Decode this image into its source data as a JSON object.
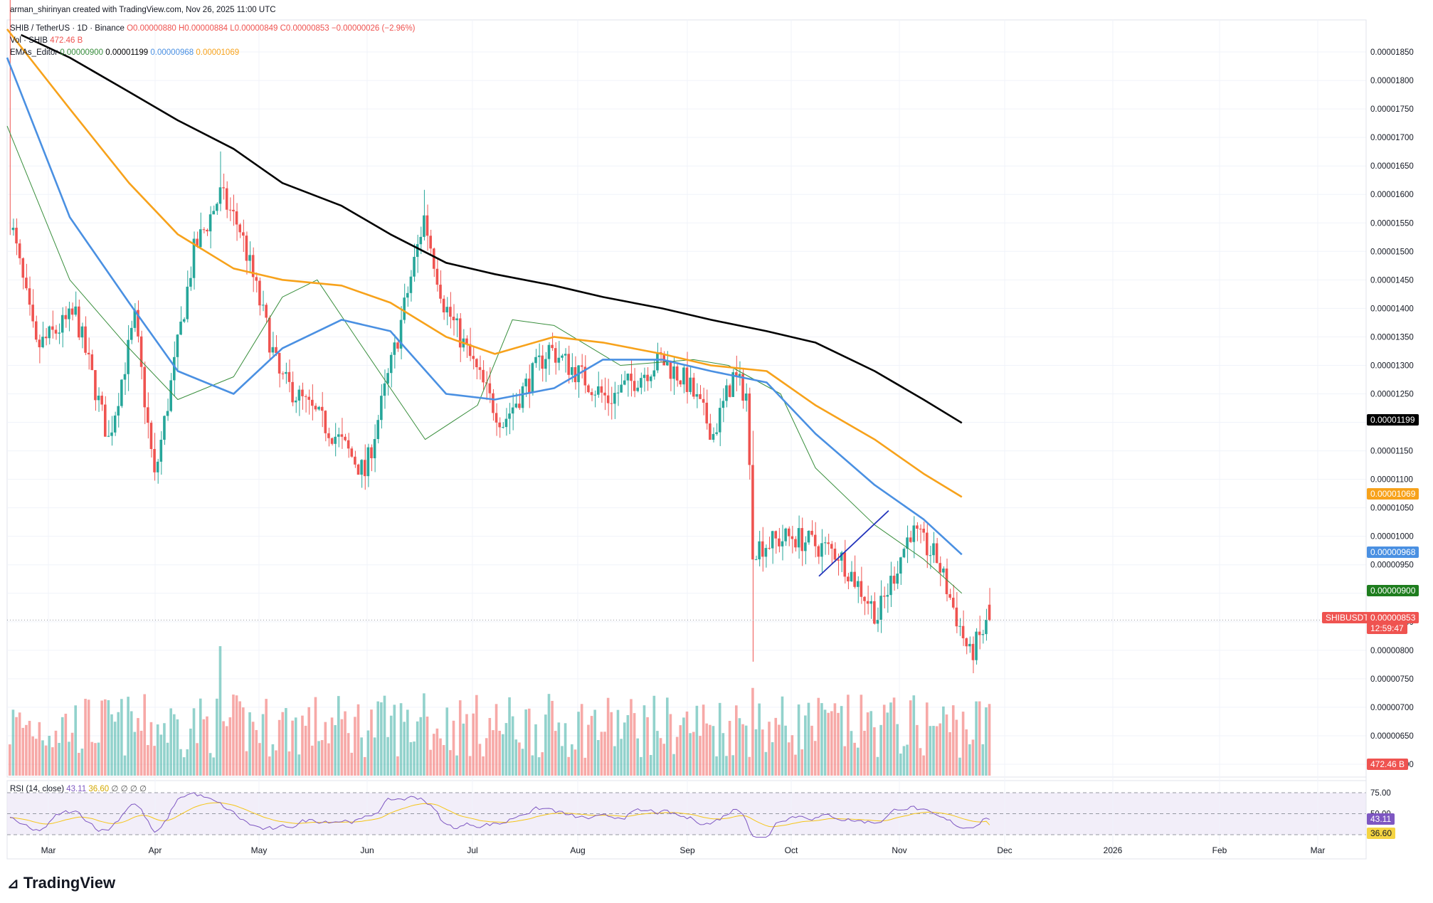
{
  "header": {
    "credit": "arman_shirinyan created with TradingView.com, Nov 26, 2025 11:00 UTC",
    "symbol": "SHIB / TetherUS · 1D · Binance",
    "open": "O0.00000880",
    "high": "H0.00000884",
    "low": "L0.00000849",
    "close": "C0.00000853",
    "change": "−0.00000026 (−2.96%)",
    "vol_label": "Vol · SHIB",
    "vol_value": "472.46 B",
    "ema_label": "EMAs_Editor",
    "ema_values": [
      "0.00000900",
      "0.00001199",
      "0.00000968",
      "0.00001069"
    ],
    "rsi_label": "RSI (14, close)",
    "rsi_value": "43.11",
    "rsi_ma": "36.60",
    "rsi_extra": "∅ ∅ ∅ ∅"
  },
  "brand": "TradingView",
  "colors": {
    "up": "#26a69a",
    "down": "#ef5350",
    "ema20": "#388e3c",
    "ema50": "#4a90e2",
    "ema100": "#f7a21b",
    "ema200": "#000000",
    "rsi": "#7e57c2",
    "rsi_ma": "#f5c518",
    "trendline": "#2233bb"
  },
  "price_axis": [
    "0.00001850",
    "0.00001800",
    "0.00001750",
    "0.00001700",
    "0.00001650",
    "0.00001600",
    "0.00001550",
    "0.00001500",
    "0.00001450",
    "0.00001400",
    "0.00001350",
    "0.00001300",
    "0.00001250",
    "0.00001200",
    "0.00001150",
    "0.00001100",
    "0.00001050",
    "0.00001000",
    "0.00000950",
    "0.00000900",
    "0.00000850",
    "0.00000800",
    "0.00000750",
    "0.00000700",
    "0.00000650",
    "0.00000600"
  ],
  "time_axis": [
    "Mar",
    "Apr",
    "May",
    "Jun",
    "Jul",
    "Aug",
    "Sep",
    "Oct",
    "Nov",
    "Dec",
    "2026",
    "Feb",
    "Mar"
  ],
  "rsi_axis": [
    "75.00",
    "50.00",
    "25.00"
  ],
  "tags": {
    "ema200": "0.00001199",
    "ema100": "0.00001069",
    "ema50": "0.00000968",
    "ema20": "0.00000900",
    "symbol": "SHIBUSDT",
    "last": "0.00000853",
    "countdown": "12:59:47",
    "volume": "472.46 B"
  },
  "chart_data": {
    "type": "candlestick",
    "title": "SHIB / TetherUS · 1D · Binance",
    "x_range": [
      "2025-02-25",
      "2026-03-20"
    ],
    "ylim": [
      5.8e-06,
      1.9e-05
    ],
    "grid": true,
    "overlays": [
      {
        "name": "EMA 20",
        "color": "#388e3c",
        "points": [
          [
            "2025-02-25",
            1.72e-05
          ],
          [
            "2025-03-15",
            1.45e-05
          ],
          [
            "2025-04-01",
            1.33e-05
          ],
          [
            "2025-04-15",
            1.24e-05
          ],
          [
            "2025-05-01",
            1.28e-05
          ],
          [
            "2025-05-15",
            1.42e-05
          ],
          [
            "2025-05-25",
            1.45e-05
          ],
          [
            "2025-06-05",
            1.35e-05
          ],
          [
            "2025-06-25",
            1.17e-05
          ],
          [
            "2025-07-10",
            1.23e-05
          ],
          [
            "2025-07-20",
            1.38e-05
          ],
          [
            "2025-08-01",
            1.37e-05
          ],
          [
            "2025-08-20",
            1.3e-05
          ],
          [
            "2025-09-10",
            1.31e-05
          ],
          [
            "2025-09-20",
            1.3e-05
          ],
          [
            "2025-10-05",
            1.25e-05
          ],
          [
            "2025-10-15",
            1.12e-05
          ],
          [
            "2025-11-01",
            1.02e-05
          ],
          [
            "2025-11-15",
            9.6e-06
          ],
          [
            "2025-11-26",
            9e-06
          ]
        ]
      },
      {
        "name": "EMA 50",
        "color": "#4a90e2",
        "points": [
          [
            "2025-02-25",
            1.84e-05
          ],
          [
            "2025-03-15",
            1.56e-05
          ],
          [
            "2025-04-01",
            1.41e-05
          ],
          [
            "2025-04-15",
            1.29e-05
          ],
          [
            "2025-05-01",
            1.25e-05
          ],
          [
            "2025-05-15",
            1.33e-05
          ],
          [
            "2025-06-01",
            1.38e-05
          ],
          [
            "2025-06-15",
            1.36e-05
          ],
          [
            "2025-07-01",
            1.25e-05
          ],
          [
            "2025-07-15",
            1.24e-05
          ],
          [
            "2025-08-01",
            1.26e-05
          ],
          [
            "2025-08-15",
            1.31e-05
          ],
          [
            "2025-09-01",
            1.31e-05
          ],
          [
            "2025-09-15",
            1.29e-05
          ],
          [
            "2025-10-01",
            1.27e-05
          ],
          [
            "2025-10-15",
            1.18e-05
          ],
          [
            "2025-11-01",
            1.09e-05
          ],
          [
            "2025-11-15",
            1.03e-05
          ],
          [
            "2025-11-26",
            9.68e-06
          ]
        ]
      },
      {
        "name": "EMA 100",
        "color": "#f7a21b",
        "points": [
          [
            "2025-02-25",
            1.89e-05
          ],
          [
            "2025-03-15",
            1.75e-05
          ],
          [
            "2025-04-01",
            1.62e-05
          ],
          [
            "2025-04-15",
            1.53e-05
          ],
          [
            "2025-05-01",
            1.47e-05
          ],
          [
            "2025-05-15",
            1.45e-05
          ],
          [
            "2025-06-01",
            1.44e-05
          ],
          [
            "2025-06-15",
            1.41e-05
          ],
          [
            "2025-07-01",
            1.35e-05
          ],
          [
            "2025-07-15",
            1.32e-05
          ],
          [
            "2025-08-01",
            1.35e-05
          ],
          [
            "2025-08-15",
            1.34e-05
          ],
          [
            "2025-09-01",
            1.32e-05
          ],
          [
            "2025-09-15",
            1.3e-05
          ],
          [
            "2025-10-01",
            1.29e-05
          ],
          [
            "2025-10-15",
            1.23e-05
          ],
          [
            "2025-11-01",
            1.17e-05
          ],
          [
            "2025-11-15",
            1.11e-05
          ],
          [
            "2025-11-26",
            1.069e-05
          ]
        ]
      },
      {
        "name": "EMA 200",
        "color": "#000000",
        "points": [
          [
            "2025-03-01",
            1.88e-05
          ],
          [
            "2025-03-15",
            1.84e-05
          ],
          [
            "2025-04-01",
            1.78e-05
          ],
          [
            "2025-04-15",
            1.73e-05
          ],
          [
            "2025-05-01",
            1.68e-05
          ],
          [
            "2025-05-15",
            1.62e-05
          ],
          [
            "2025-06-01",
            1.58e-05
          ],
          [
            "2025-06-15",
            1.53e-05
          ],
          [
            "2025-07-01",
            1.48e-05
          ],
          [
            "2025-07-15",
            1.46e-05
          ],
          [
            "2025-08-01",
            1.44e-05
          ],
          [
            "2025-08-15",
            1.42e-05
          ],
          [
            "2025-09-01",
            1.4e-05
          ],
          [
            "2025-09-15",
            1.38e-05
          ],
          [
            "2025-10-01",
            1.36e-05
          ],
          [
            "2025-10-15",
            1.34e-05
          ],
          [
            "2025-11-01",
            1.29e-05
          ],
          [
            "2025-11-15",
            1.24e-05
          ],
          [
            "2025-11-26",
            1.199e-05
          ]
        ]
      }
    ],
    "trendline": [
      [
        "2025-10-16",
        9.3e-06
      ],
      [
        "2025-11-05",
        1.045e-05
      ]
    ],
    "last_close": 8.53e-06,
    "rsi": {
      "name": "RSI (14, close)",
      "last": 43.11,
      "ma": 36.6,
      "levels": [
        75,
        50,
        25
      ]
    },
    "volume_last": "472.46 B"
  }
}
